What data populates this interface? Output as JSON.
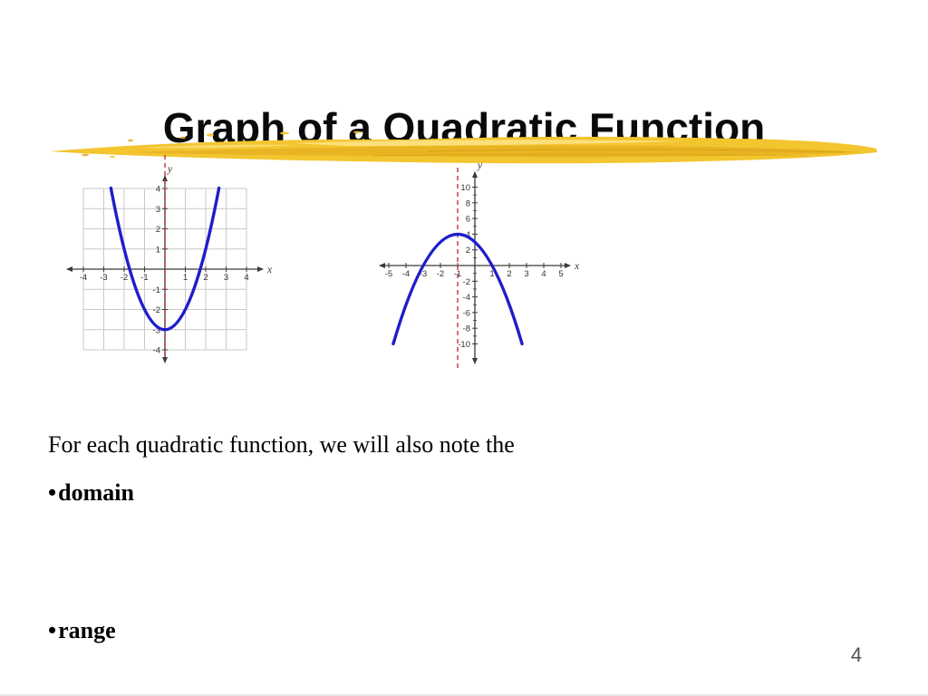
{
  "slide": {
    "title": "Graph of a Quadratic Function",
    "body_line": "For each quadratic function, we will also note the",
    "bullets": [
      {
        "marker": "•",
        "label": "domain"
      },
      {
        "marker": "•",
        "label": "range"
      }
    ],
    "page_number": "4"
  },
  "icons": {
    "highlight_streak": "yellow-brush-stroke-underline"
  },
  "colors": {
    "background": "#ffffff",
    "title_text": "#0a0a0a",
    "body_text": "#000000",
    "streak_main": "#f3c52f",
    "streak_shade": "#e0a317",
    "streak_deep": "#c68f0c",
    "streak_light": "#fbe489",
    "curve_blue": "#1e1ecb",
    "symmetry_red": "#c03232",
    "grid_gray": "#c8c8c8",
    "axis_dark": "#3a3a3a",
    "tick_label": "#333333",
    "page_number": "#55504a",
    "bottom_rule": "#e6e6e6"
  },
  "chart_data": [
    {
      "type": "line",
      "id": "upward-parabola",
      "description": "Upward-opening parabola y = x^2 - 3 with dashed red axis of symmetry at x = 0",
      "vertex": [
        0,
        -3
      ],
      "axis_of_symmetry": 0,
      "parabola": {
        "a": 1,
        "h": 0,
        "k": -3,
        "x_from": -2.65,
        "x_to": 2.65
      },
      "x_range": [
        -4,
        4
      ],
      "y_range": [
        -4,
        4
      ],
      "x_tick_labels": [
        "-4",
        "-3",
        "-2",
        "-1",
        "1",
        "2",
        "3",
        "4"
      ],
      "y_tick_labels": [
        "4",
        "3",
        "2",
        "1",
        "-1",
        "-2",
        "-3",
        "-4"
      ],
      "grid": true,
      "y_minor_ticks": false,
      "xlabel": "x",
      "ylabel": "y"
    },
    {
      "type": "line",
      "id": "downward-parabola",
      "description": "Downward-opening parabola y = -(x+1)^2 + 4 with dashed red axis of symmetry at x = -1",
      "vertex": [
        -1,
        4
      ],
      "axis_of_symmetry": -1,
      "parabola": {
        "a": -1,
        "h": -1,
        "k": 4,
        "x_from": -4.74,
        "x_to": 2.74
      },
      "x_range": [
        -5,
        5
      ],
      "y_range": [
        -10,
        10
      ],
      "x_tick_labels": [
        "-5",
        "-4",
        "-3",
        "-2",
        "-1",
        "1",
        "2",
        "3",
        "4",
        "5"
      ],
      "y_tick_labels": [
        "10",
        "8",
        "6",
        "4",
        "2",
        "-2",
        "-4",
        "-6",
        "-8",
        "-10"
      ],
      "grid": false,
      "y_minor_ticks": true,
      "xlabel": "x",
      "ylabel": "y"
    }
  ]
}
